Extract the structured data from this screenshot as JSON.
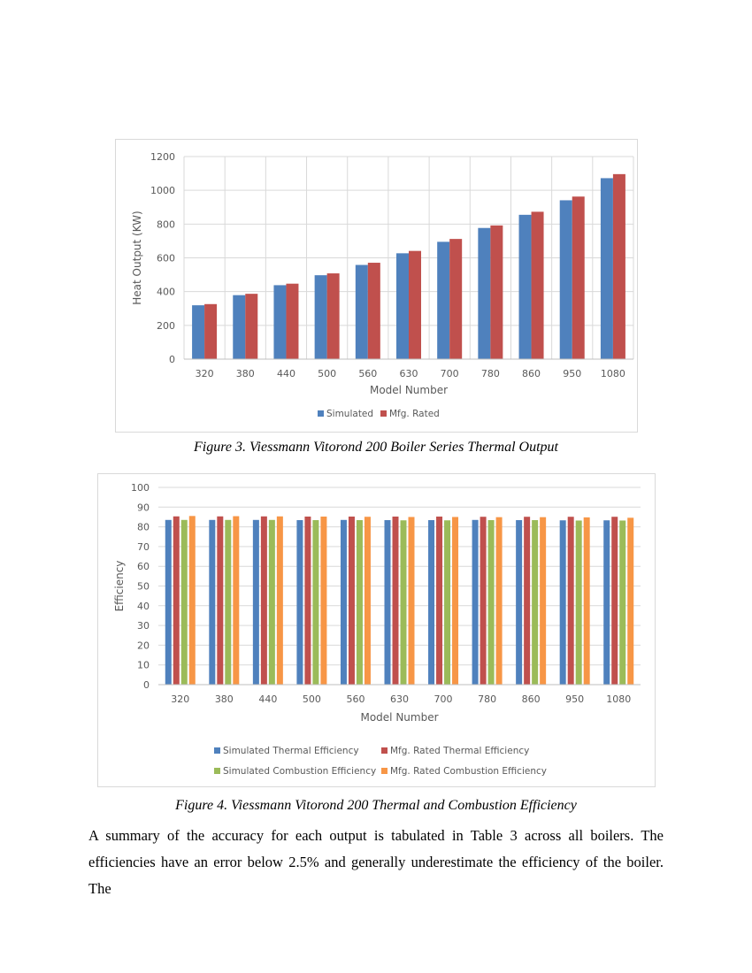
{
  "figures": [
    {
      "caption": "Figure 3. Viessmann Vitorond 200 Boiler Series Thermal Output"
    },
    {
      "caption": "Figure 4. Viessmann Vitorond 200 Thermal and Combustion Efficiency"
    }
  ],
  "paragraph": {
    "lines": [
      "A summary of the accuracy for each output is tabulated in Table 3 across all boilers. The",
      "efficiencies have an error below 2.5% and generally underestimate the efficiency of the boiler. The"
    ]
  },
  "chart_data": [
    {
      "type": "bar",
      "xlabel": "Model Number",
      "ylabel": "Heat Output (KW)",
      "ylim": [
        0,
        1200
      ],
      "yticks": [
        0,
        200,
        400,
        600,
        800,
        1000,
        1200
      ],
      "grid": true,
      "legend_placement": "bottom",
      "categories": [
        "320",
        "380",
        "440",
        "500",
        "560",
        "630",
        "700",
        "780",
        "860",
        "950",
        "1080"
      ],
      "series": [
        {
          "name": "Simulated",
          "color": "#4f81bd",
          "values": [
            319,
            379,
            438,
            497,
            558,
            627,
            695,
            777,
            855,
            941,
            1072
          ]
        },
        {
          "name": "Mfg. Rated",
          "color": "#c0504d",
          "values": [
            326,
            387,
            447,
            508,
            571,
            641,
            712,
            792,
            873,
            963,
            1096
          ]
        }
      ]
    },
    {
      "type": "bar",
      "xlabel": "Model Number",
      "ylabel": "Efficiency",
      "ylim": [
        0,
        100
      ],
      "yticks": [
        0,
        10,
        20,
        30,
        40,
        50,
        60,
        70,
        80,
        90,
        100
      ],
      "grid": true,
      "legend_placement": "bottom",
      "categories": [
        "320",
        "380",
        "440",
        "500",
        "560",
        "630",
        "700",
        "780",
        "860",
        "950",
        "1080"
      ],
      "series": [
        {
          "name": "Simulated Thermal Efficiency",
          "color": "#4f81bd",
          "values": [
            83.5,
            83.5,
            83.5,
            83.4,
            83.5,
            83.4,
            83.4,
            83.5,
            83.4,
            83.3,
            83.3
          ]
        },
        {
          "name": "Mfg. Rated Thermal Efficiency",
          "color": "#c0504d",
          "values": [
            85.3,
            85.3,
            85.3,
            85.2,
            85.2,
            85.2,
            85.2,
            85.1,
            85.1,
            85.1,
            85.1
          ]
        },
        {
          "name": "Simulated Combustion Efficiency",
          "color": "#9bbb59",
          "values": [
            83.5,
            83.5,
            83.5,
            83.4,
            83.4,
            83.3,
            83.3,
            83.4,
            83.4,
            83.2,
            83.2
          ]
        },
        {
          "name": "Mfg. Rated Combustion Efficiency",
          "color": "#f79646",
          "values": [
            85.5,
            85.4,
            85.3,
            85.2,
            85.1,
            85.0,
            85.0,
            84.9,
            84.9,
            84.8,
            84.6
          ]
        }
      ]
    }
  ]
}
